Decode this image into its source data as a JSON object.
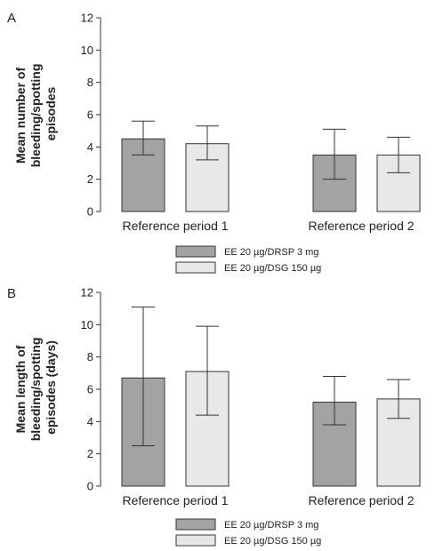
{
  "chart_data": [
    {
      "panel": "A",
      "type": "bar",
      "ylabel_lines": [
        "Mean number of",
        "bleeding/spotting",
        "episodes"
      ],
      "ylim": [
        0,
        12
      ],
      "yticks": [
        0,
        2,
        4,
        6,
        8,
        10,
        12
      ],
      "categories": [
        "Reference period 1",
        "Reference period 2"
      ],
      "series": [
        {
          "name": "EE 20 µg/DRSP 3 mg",
          "color": "#a3a3a3",
          "values": [
            4.5,
            3.5
          ],
          "error_low": [
            3.5,
            2.0
          ],
          "error_high": [
            5.6,
            5.1
          ]
        },
        {
          "name": "EE 20 µg/DSG 150 µg",
          "color": "#e8e8e8",
          "values": [
            4.2,
            3.5
          ],
          "error_low": [
            3.2,
            2.4
          ],
          "error_high": [
            5.3,
            4.6
          ]
        }
      ]
    },
    {
      "panel": "B",
      "type": "bar",
      "ylabel_lines": [
        "Mean length of",
        "bleeding/spotting",
        "episodes (days)"
      ],
      "ylim": [
        0,
        12
      ],
      "yticks": [
        0,
        2,
        4,
        6,
        8,
        10,
        12
      ],
      "categories": [
        "Reference period 1",
        "Reference period 2"
      ],
      "series": [
        {
          "name": "EE 20 µg/DRSP 3 mg",
          "color": "#a3a3a3",
          "values": [
            6.7,
            5.2
          ],
          "error_low": [
            2.5,
            3.8
          ],
          "error_high": [
            11.1,
            6.8
          ]
        },
        {
          "name": "EE 20 µg/DSG 150 µg",
          "color": "#e8e8e8",
          "values": [
            7.1,
            5.4
          ],
          "error_low": [
            4.4,
            4.2
          ],
          "error_high": [
            9.9,
            6.6
          ]
        }
      ]
    }
  ]
}
